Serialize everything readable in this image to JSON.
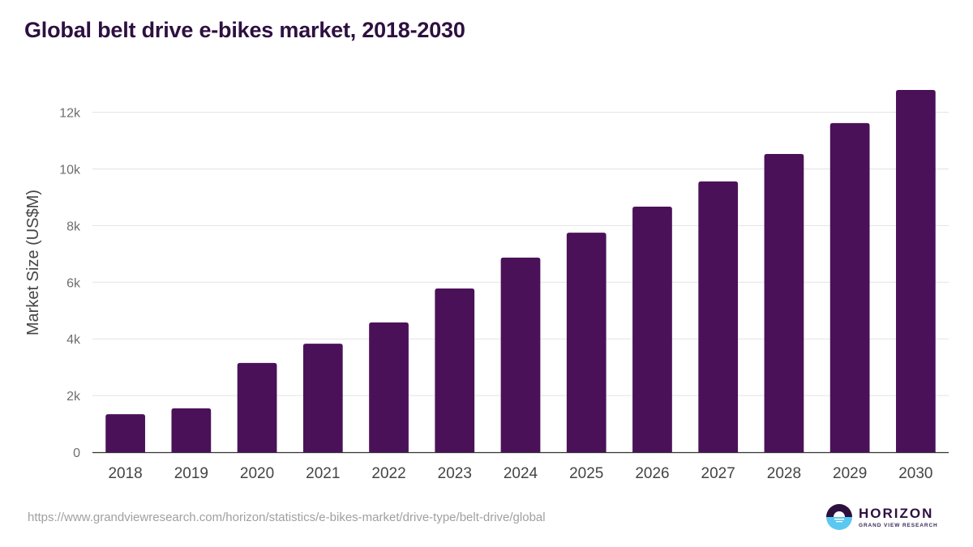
{
  "title": "Global belt drive e-bikes market, 2018-2030",
  "source_url": "https://www.grandviewresearch.com/horizon/statistics/e-bikes-market/drive-type/belt-drive/global",
  "logo": {
    "name": "HORIZON",
    "subtitle": "GRAND VIEW RESEARCH",
    "icon": "horizon-sun-logo-icon"
  },
  "colors": {
    "bar": "#4b1158",
    "title": "#2d1040",
    "grid": "#e3e3e3",
    "axis": "#333333",
    "logo_top": "#2d1040",
    "logo_bottom": "#5bc8f0"
  },
  "chart_data": {
    "type": "bar",
    "title": "Global belt drive e-bikes market, 2018-2030",
    "xlabel": "",
    "ylabel": "Market Size (US$M)",
    "categories": [
      "2018",
      "2019",
      "2020",
      "2021",
      "2022",
      "2023",
      "2024",
      "2025",
      "2026",
      "2027",
      "2028",
      "2029",
      "2030"
    ],
    "series": [
      {
        "name": "Market Size (US$M)",
        "values": [
          1340,
          1550,
          3150,
          3830,
          4580,
          5780,
          6870,
          7750,
          8670,
          9560,
          10530,
          11620,
          12790
        ]
      }
    ],
    "ylim": [
      0,
      13000
    ],
    "yticks": [
      0,
      2000,
      4000,
      6000,
      8000,
      10000,
      12000
    ],
    "ytick_labels": [
      "0",
      "2k",
      "4k",
      "6k",
      "8k",
      "10k",
      "12k"
    ],
    "grid": true,
    "legend": "none"
  }
}
